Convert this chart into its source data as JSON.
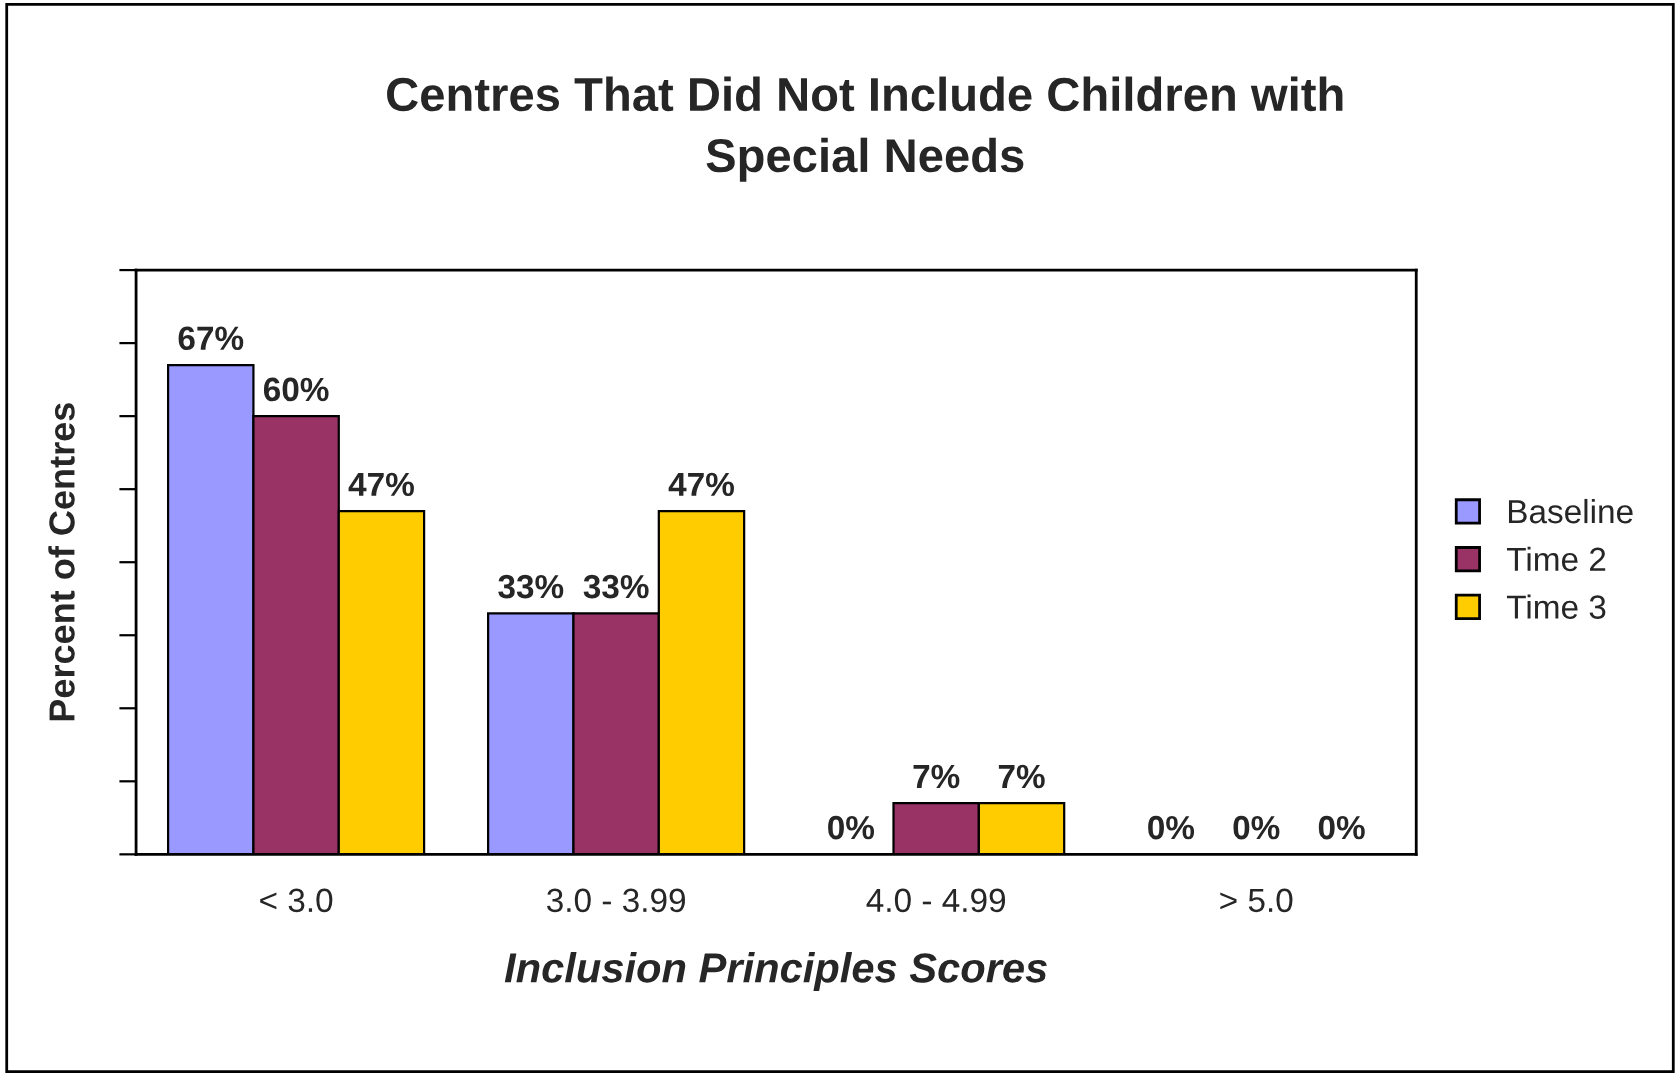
{
  "chart_data": {
    "type": "bar",
    "title": "Centres That Did Not Include Children with\nSpecial Needs",
    "xlabel": "Inclusion Principles Scores",
    "ylabel": "Percent of Centres",
    "categories": [
      "< 3.0",
      "3.0 - 3.99",
      "4.0 - 4.99",
      "> 5.0"
    ],
    "series": [
      {
        "name": "Baseline",
        "color": "#9999ff",
        "values": [
          67,
          33,
          0,
          0
        ],
        "value_labels": [
          "67%",
          "33%",
          "0%",
          "0%"
        ]
      },
      {
        "name": "Time 2",
        "color": "#993366",
        "values": [
          60,
          33,
          7,
          0
        ],
        "value_labels": [
          "60%",
          "33%",
          "7%",
          "0%"
        ]
      },
      {
        "name": "Time 3",
        "color": "#ffcc00",
        "values": [
          47,
          47,
          7,
          0
        ],
        "value_labels": [
          "47%",
          "47%",
          "7%",
          "0%"
        ]
      }
    ],
    "ylim": [
      0,
      80
    ],
    "yticks": [
      {
        "value": 0,
        "label": null
      },
      {
        "value": 10,
        "label": null
      },
      {
        "value": 20,
        "label": null
      },
      {
        "value": 30,
        "label": null
      },
      {
        "value": 40,
        "label": null
      },
      {
        "value": 50,
        "label": null
      },
      {
        "value": 60,
        "label": null
      },
      {
        "value": 70,
        "label": null
      },
      {
        "value": 80,
        "label": null
      }
    ],
    "grid": false,
    "legend": "right"
  }
}
